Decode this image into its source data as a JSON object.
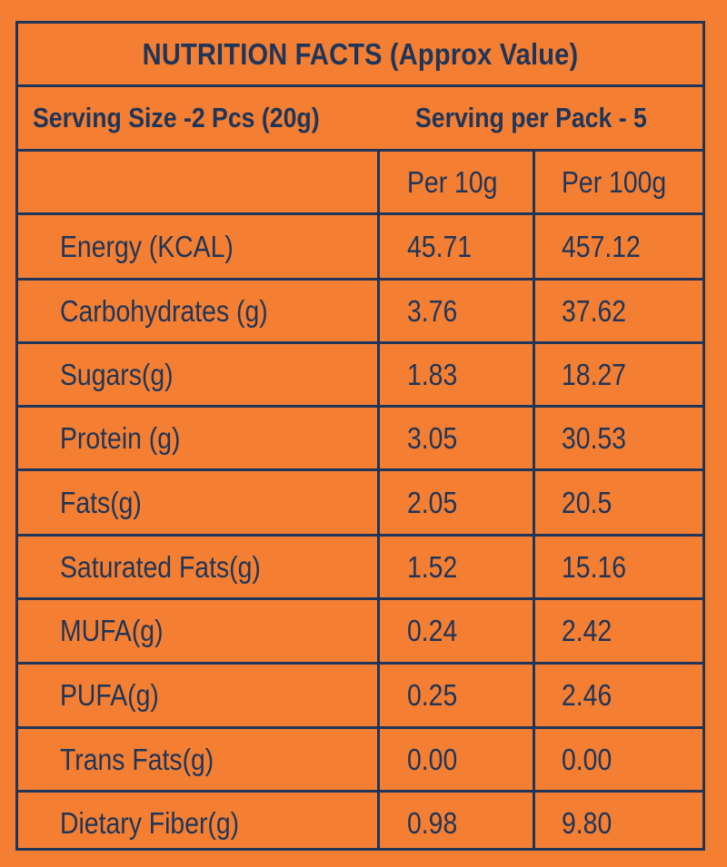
{
  "title": "NUTRITION FACTS (Approx Value)",
  "serving": {
    "size": "Serving Size -2 Pcs (20g)",
    "per_pack": "Serving per Pack - 5"
  },
  "columns": {
    "nutrient": "",
    "per_10g": "Per 10g",
    "per_100g": "Per 100g"
  },
  "rows": [
    {
      "name": "Energy (KCAL)",
      "per_10g": "45.71",
      "per_100g": "457.12"
    },
    {
      "name": "Carbohydrates (g)",
      "per_10g": "3.76",
      "per_100g": "37.62"
    },
    {
      "name": "Sugars(g)",
      "per_10g": "1.83",
      "per_100g": "18.27"
    },
    {
      "name": "Protein (g)",
      "per_10g": "3.05",
      "per_100g": "30.53"
    },
    {
      "name": "Fats(g)",
      "per_10g": "2.05",
      "per_100g": "20.5"
    },
    {
      "name": "Saturated Fats(g)",
      "per_10g": "1.52",
      "per_100g": "15.16"
    },
    {
      "name": "MUFA(g)",
      "per_10g": "0.24",
      "per_100g": "2.42"
    },
    {
      "name": "PUFA(g)",
      "per_10g": "0.25",
      "per_100g": "2.46"
    },
    {
      "name": "Trans Fats(g)",
      "per_10g": "0.00",
      "per_100g": "0.00"
    },
    {
      "name": "Dietary Fiber(g)",
      "per_10g": "0.98",
      "per_100g": "9.80"
    }
  ],
  "colors": {
    "background": "#f47f32",
    "ink": "#1f3559"
  }
}
